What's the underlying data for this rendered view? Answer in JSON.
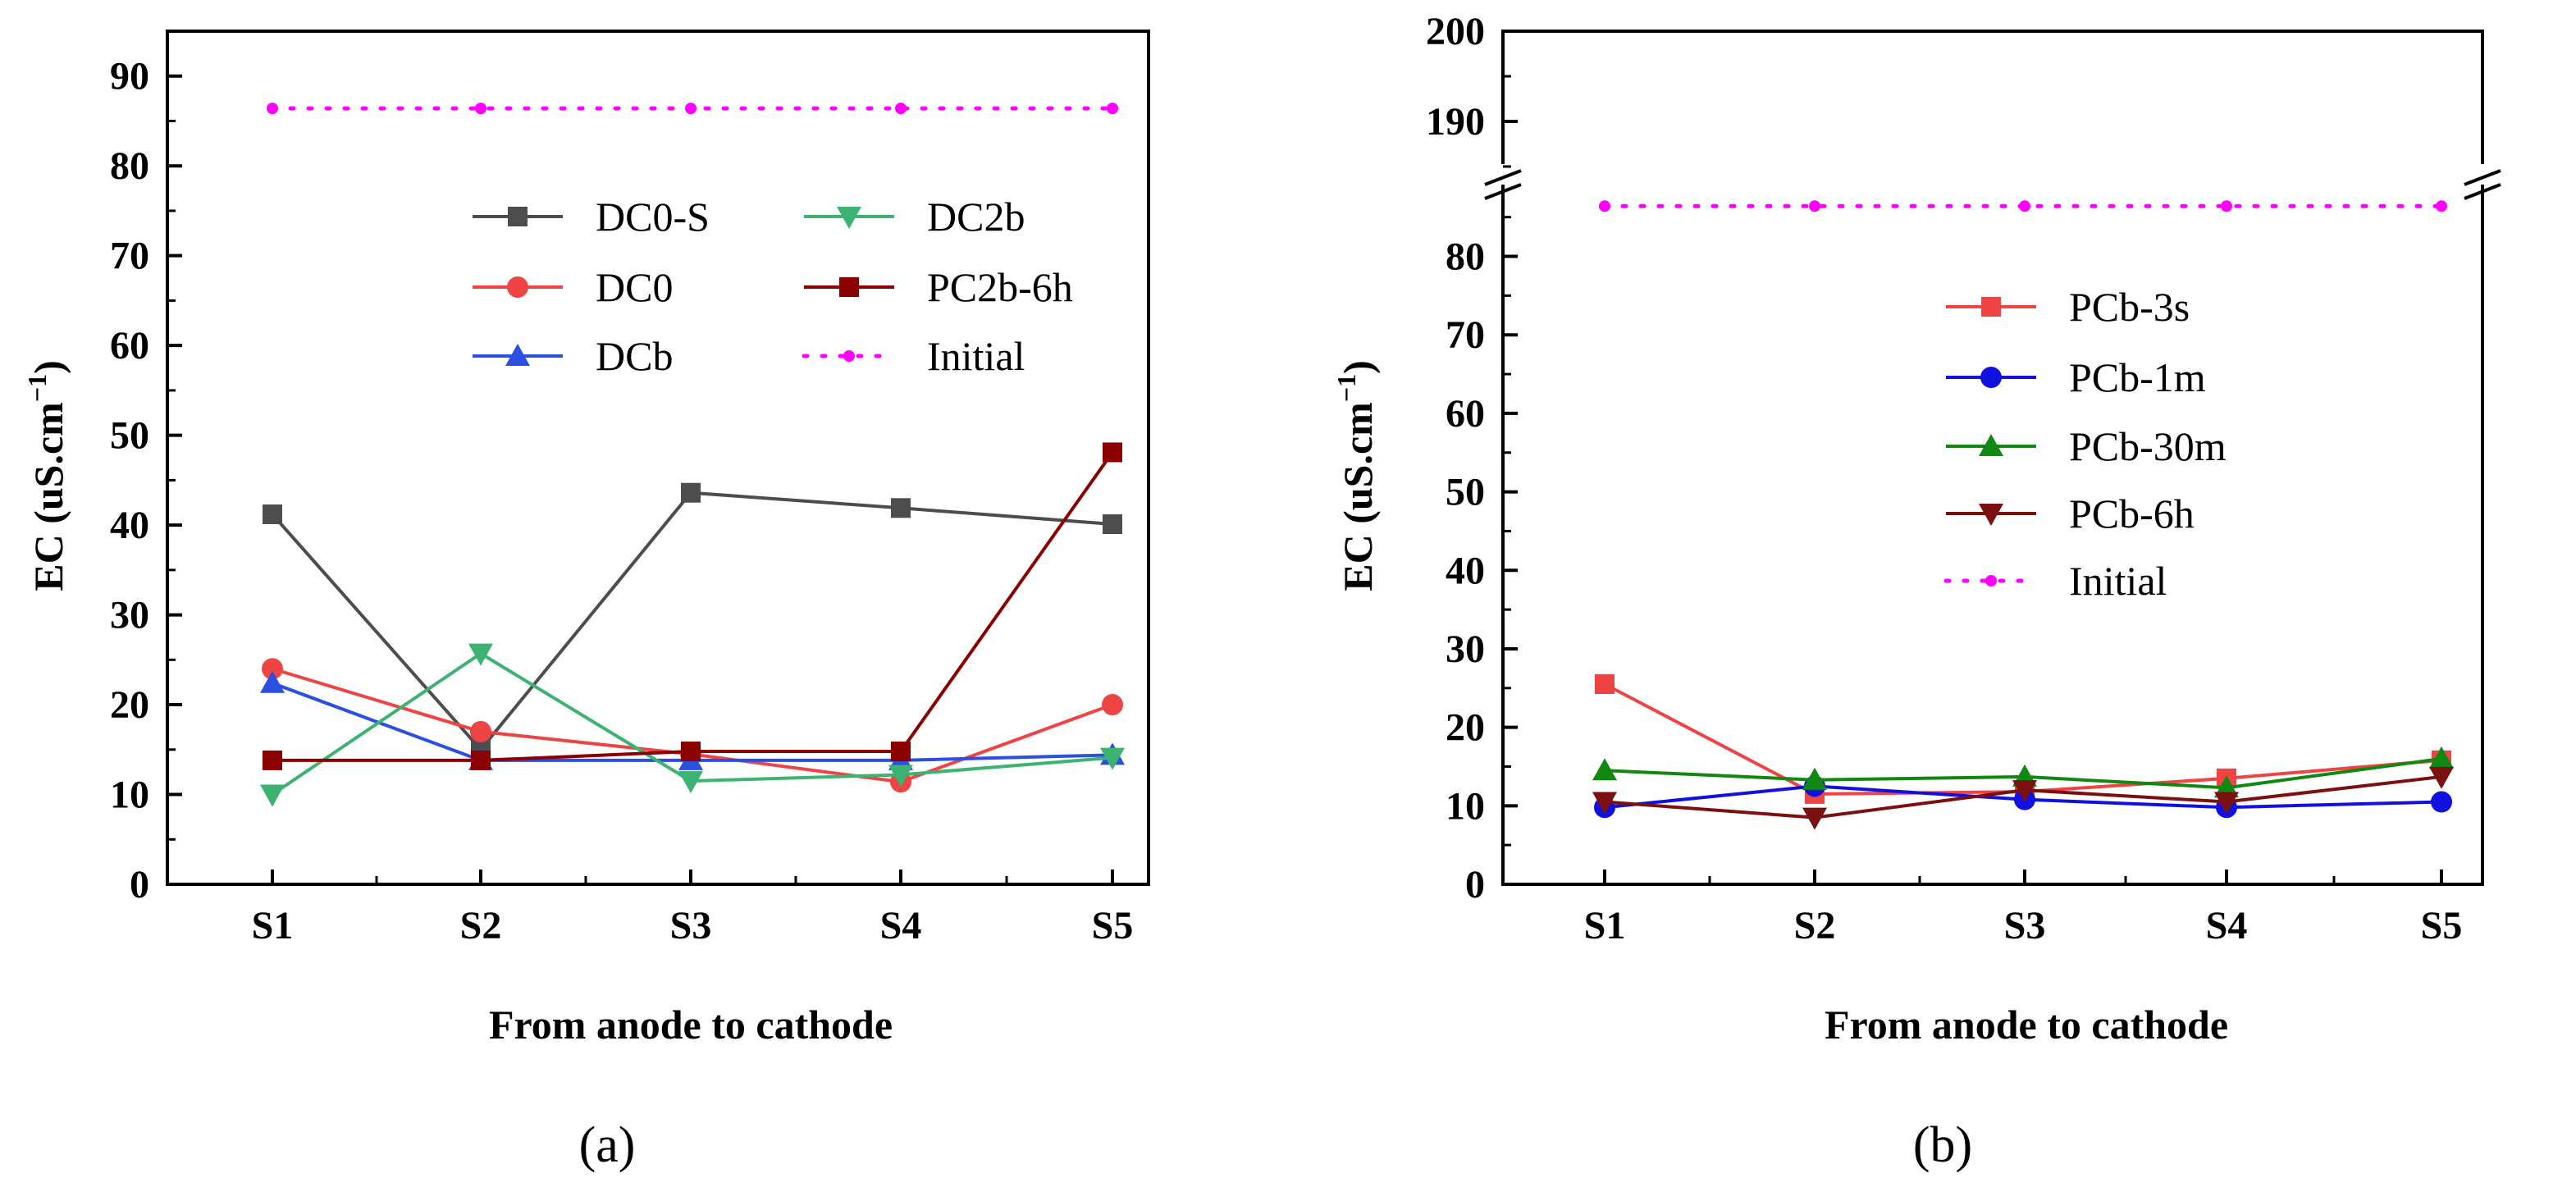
{
  "chart_data": [
    {
      "type": "line",
      "panel_label": "(a)",
      "xlabel": "From anode to cathode",
      "ylabel": "EC (uS.cm",
      "ylabel_sup": "−1",
      "ylabel_close": ")",
      "categories": [
        "S1",
        "S2",
        "S3",
        "S4",
        "S5"
      ],
      "ylim": [
        0,
        95
      ],
      "yticks": [
        0,
        10,
        20,
        30,
        40,
        50,
        60,
        70,
        80,
        90
      ],
      "grid": false,
      "legend_position": "top-right",
      "series": [
        {
          "name": "DC0-S",
          "color": "#4d4d4d",
          "marker": "square",
          "values": [
            41.2,
            15.0,
            43.6,
            41.9,
            40.1
          ]
        },
        {
          "name": "DC0",
          "color": "#ef4444",
          "marker": "circle",
          "values": [
            24.0,
            17.0,
            14.5,
            11.4,
            20.0
          ]
        },
        {
          "name": "DCb",
          "color": "#2b4fe0",
          "marker": "triangle-up",
          "values": [
            22.4,
            13.8,
            13.8,
            13.8,
            14.4
          ]
        },
        {
          "name": "DC2b",
          "color": "#3cb371",
          "marker": "triangle-down",
          "values": [
            10.0,
            25.7,
            11.5,
            12.2,
            14.1
          ]
        },
        {
          "name": "PC2b-6h",
          "color": "#8b0000",
          "marker": "square",
          "values": [
            13.8,
            13.8,
            14.8,
            14.8,
            48.1
          ]
        },
        {
          "name": "Initial",
          "color": "#ff00ff",
          "marker": "dot",
          "dotted": true,
          "values": [
            86.4,
            86.4,
            86.4,
            86.4,
            86.4
          ]
        }
      ]
    },
    {
      "type": "line",
      "panel_label": "(b)",
      "xlabel": "From anode to cathode",
      "ylabel": "EC (uS.cm",
      "ylabel_sup": "−1",
      "ylabel_close": ")",
      "categories": [
        "S1",
        "S2",
        "S3",
        "S4",
        "S5"
      ],
      "y_axis_break": {
        "lower": [
          0,
          88
        ],
        "upper": [
          182,
          200
        ]
      },
      "yticks_lower": [
        0,
        10,
        20,
        30,
        40,
        50,
        60,
        70,
        80
      ],
      "yticks_upper": [
        190,
        200
      ],
      "grid": false,
      "legend_position": "center-right",
      "series": [
        {
          "name": "PCb-3s",
          "color": "#ef4444",
          "marker": "square",
          "values": [
            25.5,
            11.5,
            11.8,
            13.5,
            15.8
          ]
        },
        {
          "name": "PCb-1m",
          "color": "#1010e0",
          "marker": "circle",
          "values": [
            9.8,
            12.5,
            10.8,
            9.8,
            10.5
          ]
        },
        {
          "name": "PCb-30m",
          "color": "#118811",
          "marker": "triangle-up",
          "values": [
            14.5,
            13.3,
            13.7,
            12.3,
            16.0
          ]
        },
        {
          "name": "PCb-6h",
          "color": "#7a1010",
          "marker": "triangle-down",
          "values": [
            10.5,
            8.5,
            12.0,
            10.5,
            13.7
          ]
        },
        {
          "name": "Initial",
          "color": "#ff00ff",
          "marker": "dot",
          "dotted": true,
          "values": [
            86.4,
            86.4,
            86.4,
            86.4,
            86.4
          ]
        }
      ]
    }
  ]
}
